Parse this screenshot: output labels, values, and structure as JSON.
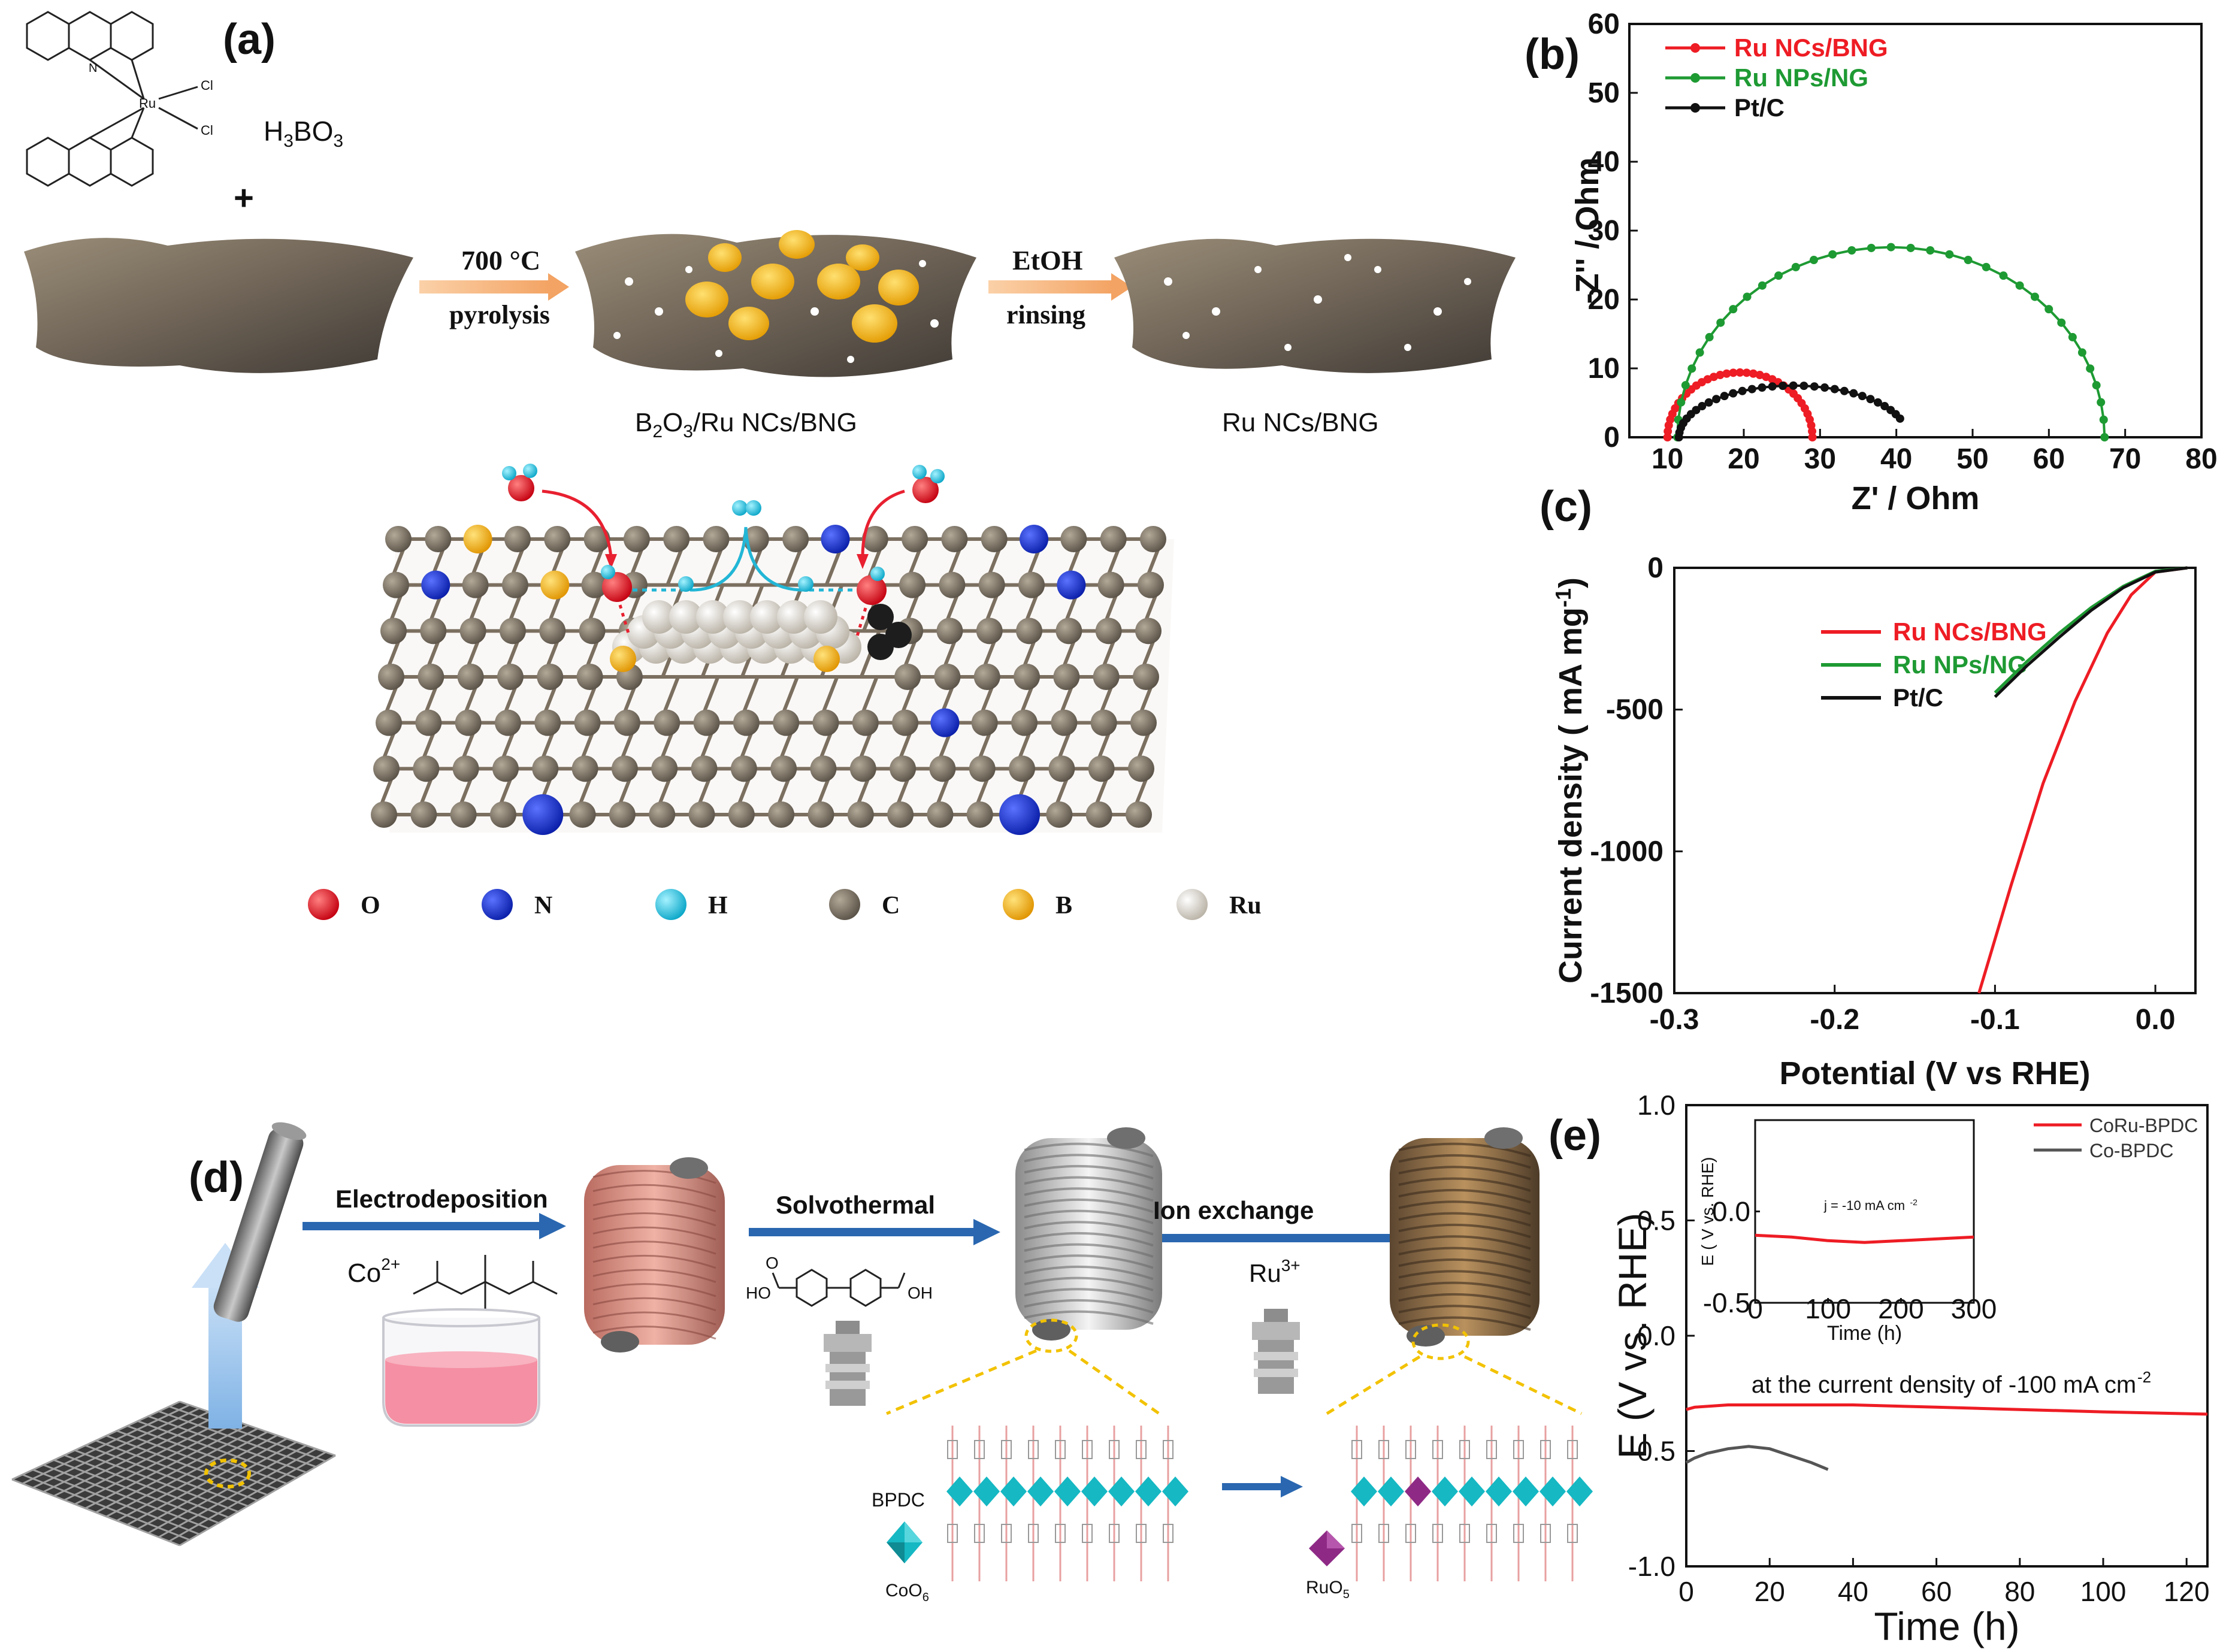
{
  "panel_a": {
    "label": "(a)",
    "reagent": "H3BO3",
    "plus": "+",
    "ligand_atoms": {
      "metal": "Ru",
      "cl1": "Cl",
      "cl2": "Cl",
      "n": "N"
    },
    "step1_top": "700 °C",
    "step1_bottom": "pyrolysis",
    "step2_top": "EtOH",
    "step2_bottom": "rinsing",
    "product1": "B2O3/Ru NCs/BNG",
    "product2": "Ru NCs/BNG",
    "legend": [
      {
        "symbol": "O",
        "color": "#e8202a"
      },
      {
        "symbol": "N",
        "color": "#1030d8"
      },
      {
        "symbol": "H",
        "color": "#22c4e0"
      },
      {
        "symbol": "C",
        "color": "#6e6558"
      },
      {
        "symbol": "B",
        "color": "#f5b400"
      },
      {
        "symbol": "Ru",
        "color": "#e6e2dc"
      }
    ]
  },
  "panel_d": {
    "label": "(d)",
    "step1": "Electrodeposition",
    "step1_reagent": "Co2+",
    "step2": "Solvothermal",
    "step3": "Ion exchange",
    "step3_reagent": "Ru3+",
    "bpdc": "BPDC",
    "coo6": "CoO6",
    "ruo5": "RuO5",
    "diacid_label": "HO",
    "diacid_oh": "OH",
    "diacid_o": "O"
  },
  "chart_data": [
    {
      "panel": "(b)",
      "type": "line",
      "xlabel": "Z' / Ohm",
      "ylabel": "-Z'' / Ohm",
      "xlim": [
        5,
        80
      ],
      "ylim": [
        0,
        60
      ],
      "xticks": [
        10,
        20,
        30,
        40,
        50,
        60,
        70,
        80
      ],
      "yticks": [
        0,
        10,
        20,
        30,
        40,
        50,
        60
      ],
      "series": [
        {
          "name": "Ru NCs/BNG",
          "color": "#ee1c24",
          "center": 19.5,
          "radius": 9.5,
          "ymax": 9.4,
          "start": 10.0,
          "end": 29.0
        },
        {
          "name": "Ru NPs/NG",
          "color": "#1e9a33",
          "center": 39.3,
          "radius": 28.0,
          "ymax": 27.6,
          "start": 11.2,
          "end": 67.4
        },
        {
          "name": "Pt/C",
          "color": "#111111",
          "center": 26.5,
          "radius": 15.0,
          "ymax": 7.5,
          "start": 11.5,
          "end": 40.5
        }
      ]
    },
    {
      "panel": "(c)",
      "type": "line",
      "xlabel": "Potential (V vs RHE)",
      "ylabel": "Current density ( mA mg-1)",
      "xlim": [
        -0.3,
        0.025
      ],
      "ylim": [
        -1500,
        0
      ],
      "xticks": [
        -0.3,
        -0.2,
        -0.1,
        0.0
      ],
      "yticks": [
        0,
        -500,
        -1000,
        -1500
      ],
      "series": [
        {
          "name": "Ru NCs/BNG",
          "color": "#ee1c24",
          "x": [
            -0.11,
            -0.09,
            -0.07,
            -0.05,
            -0.03,
            -0.015,
            0.0,
            0.02
          ],
          "y": [
            -1500,
            -1120,
            -760,
            -470,
            -230,
            -95,
            -15,
            0
          ]
        },
        {
          "name": "Ru NPs/NG",
          "color": "#1e9a33",
          "x": [
            -0.1,
            -0.08,
            -0.06,
            -0.04,
            -0.02,
            0.0,
            0.02
          ],
          "y": [
            -440,
            -330,
            -230,
            -140,
            -65,
            -12,
            0
          ]
        },
        {
          "name": "Pt/C",
          "color": "#111111",
          "x": [
            -0.1,
            -0.08,
            -0.06,
            -0.04,
            -0.02,
            0.0,
            0.02
          ],
          "y": [
            -455,
            -345,
            -245,
            -150,
            -70,
            -15,
            0
          ]
        }
      ]
    },
    {
      "panel": "(e)",
      "type": "line",
      "xlabel": "Time (h)",
      "ylabel": "E (V vs. RHE)",
      "xlim": [
        0,
        125
      ],
      "ylim": [
        -1.0,
        1.0
      ],
      "xticks": [
        0,
        20,
        40,
        60,
        80,
        100,
        120
      ],
      "yticks": [
        1.0,
        0.5,
        0.0,
        -0.5,
        -1.0
      ],
      "annotation": "at the current density of -100 mA cm-2",
      "series": [
        {
          "name": "CoRu-BPDC",
          "color": "#ee1c24",
          "x": [
            0,
            2,
            10,
            20,
            40,
            60,
            80,
            100,
            125
          ],
          "y": [
            -0.32,
            -0.31,
            -0.3,
            -0.3,
            -0.3,
            -0.31,
            -0.32,
            -0.33,
            -0.34
          ]
        },
        {
          "name": "Co-BPDC",
          "color": "#555555",
          "x": [
            0,
            2,
            5,
            10,
            15,
            20,
            25,
            30,
            34
          ],
          "y": [
            -0.55,
            -0.53,
            -0.51,
            -0.49,
            -0.48,
            -0.49,
            -0.52,
            -0.55,
            -0.58
          ]
        }
      ],
      "inset": {
        "xlabel": "Time (h)",
        "ylabel": "E ( V vs. RHE)",
        "xlim": [
          0,
          300
        ],
        "ylim": [
          -0.5,
          0.5
        ],
        "xticks": [
          0,
          100,
          200,
          300
        ],
        "yticks": [
          0.0,
          -0.5
        ],
        "ytick_labels": [
          "0.0",
          "-0.5"
        ],
        "annotation": "j = -10 mA cm-2",
        "x": [
          0,
          50,
          100,
          150,
          200,
          250,
          300
        ],
        "y": [
          -0.13,
          -0.14,
          -0.16,
          -0.17,
          -0.16,
          -0.15,
          -0.14
        ]
      }
    }
  ],
  "panel_b_label": "(b)",
  "panel_c_label": "(c)",
  "panel_e_label": "(e)"
}
